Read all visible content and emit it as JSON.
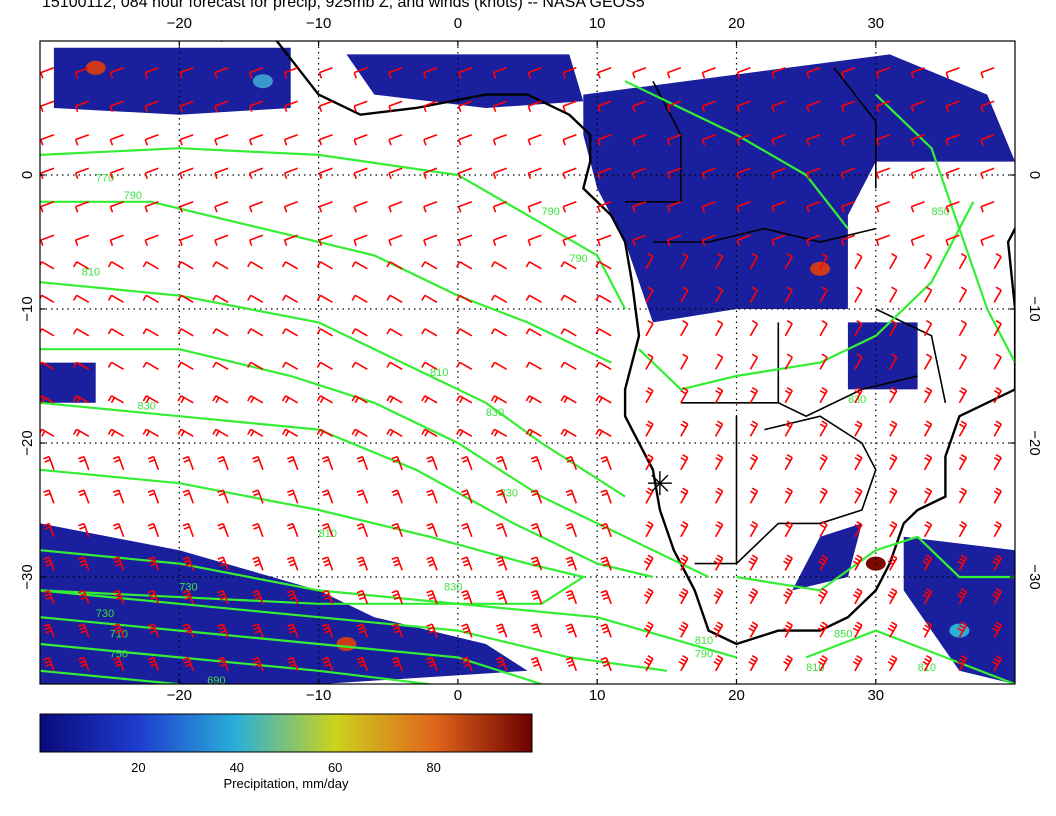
{
  "title": "15100112, 084 hour forecast for precip, 925mb Z, and winds (knots) -- NASA GEOS5",
  "map": {
    "lon_range": [
      -30,
      40
    ],
    "lat_range": [
      -38,
      10
    ],
    "grid_lons": [
      -20,
      -10,
      0,
      10,
      20,
      30
    ],
    "grid_lats": [
      0,
      -10,
      -20,
      -30
    ],
    "lon_tick_labels": [
      "−20",
      "−10",
      "0",
      "10",
      "20",
      "30"
    ],
    "lat_tick_labels": [
      "0",
      "−10",
      "−20",
      "−30"
    ],
    "contour_labels": [
      "770",
      "790",
      "810",
      "790",
      "810",
      "830",
      "810",
      "830",
      "830",
      "790",
      "830",
      "750",
      "730",
      "710",
      "690",
      "730",
      "790",
      "810",
      "850",
      "810",
      "830",
      "850",
      "810"
    ],
    "station_marker": "sounding-site-marker",
    "colors": {
      "wind_barbs": "#ff0000",
      "height_contours": "#33ee33",
      "coastlines": "#000000",
      "grid": "#000000"
    }
  },
  "colorbar": {
    "label": "Precipitation, mm/day",
    "ticks": [
      "20",
      "40",
      "60",
      "80"
    ],
    "range": [
      0,
      100
    ],
    "colors": [
      "#0a0a7a",
      "#1e3ccf",
      "#2ab0d8",
      "#cbd31c",
      "#e0661b",
      "#6e0000"
    ]
  }
}
